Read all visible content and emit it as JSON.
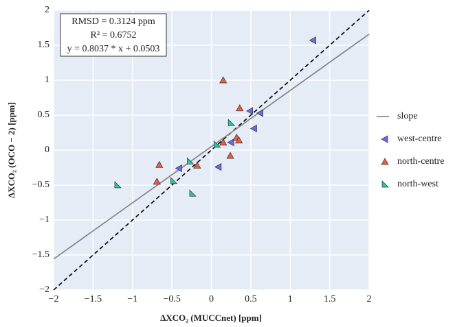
{
  "chart_data": {
    "type": "scatter",
    "xlabel": "ΔXCO₂ (MUCCnet) [ppm]",
    "ylabel": "ΔXCO₂ (OCO − 2) [ppm]",
    "annotations": [
      "RMSD = 0.3124 ppm",
      "R² = 0.6752",
      "y = 0.8037 * x + 0.0503"
    ],
    "xlim": [
      -2,
      2
    ],
    "ylim": [
      -2,
      2
    ],
    "xticks": [
      {
        "value": -2,
        "label": "−2"
      },
      {
        "value": -1.5,
        "label": "−1.5"
      },
      {
        "value": -1,
        "label": "−1"
      },
      {
        "value": -0.5,
        "label": "−0.5"
      },
      0,
      0.5,
      1,
      1.5,
      2
    ],
    "yticks": [
      {
        "value": -2,
        "label": "−2"
      },
      {
        "value": -1.5,
        "label": "−1.5"
      },
      {
        "value": -1,
        "label": "−1"
      },
      {
        "value": -0.5,
        "label": "−0.5"
      },
      0,
      0.5,
      1,
      1.5,
      2
    ],
    "grid": true,
    "series": [
      {
        "name": "slope",
        "type": "line",
        "color": "#888888",
        "x": [
          -2,
          2
        ],
        "values": [
          -1.5571,
          1.6577
        ]
      },
      {
        "name": "west-centre",
        "type": "scatter",
        "marker": "triangle-left",
        "color": "#6a6ae6",
        "x": [
          1.29,
          0.49,
          0.62,
          0.54,
          0.25,
          0.09,
          -0.41
        ],
        "values": [
          1.57,
          0.56,
          0.53,
          0.31,
          0.11,
          -0.24,
          -0.26
        ]
      },
      {
        "name": "north-centre",
        "type": "scatter",
        "marker": "triangle-up",
        "color": "#ec5a40",
        "x": [
          0.15,
          0.36,
          0.32,
          0.35,
          0.15,
          0.24,
          -0.18,
          -0.66,
          -0.69
        ],
        "values": [
          1.0,
          0.6,
          0.18,
          0.14,
          0.11,
          -0.08,
          -0.22,
          -0.21,
          -0.45
        ]
      },
      {
        "name": "north-west",
        "type": "scatter",
        "marker": "triangle-se",
        "color": "#22c9a2",
        "x": [
          -1.19,
          -0.48,
          -0.27,
          -0.24,
          0.25,
          0.07
        ],
        "values": [
          -0.5,
          -0.44,
          -0.16,
          -0.62,
          0.39,
          0.08
        ]
      }
    ]
  }
}
